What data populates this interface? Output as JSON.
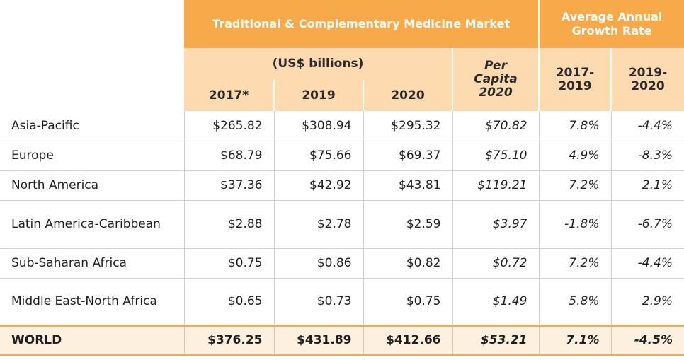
{
  "headers": {
    "market_group": "Traditional & Complementary Medicine Market",
    "growth_group": "Average Annual Growth Rate",
    "usd_billions": "(US$ billions)",
    "per_capita": "Per Capita 2020",
    "col_2017": "2017*",
    "col_2019": "2019",
    "col_2020": "2020",
    "growth_2017_2019": "2017-2019",
    "growth_2019_2020": "2019-2020"
  },
  "rows": [
    {
      "region": "Asia-Pacific",
      "v2017": "$265.82",
      "v2019": "$308.94",
      "v2020": "$295.32",
      "per_capita": "$70.82",
      "g1": "7.8%",
      "g2": "-4.4%"
    },
    {
      "region": "Europe",
      "v2017": "$68.79",
      "v2019": "$75.66",
      "v2020": "$69.37",
      "per_capita": "$75.10",
      "g1": "4.9%",
      "g2": "-8.3%"
    },
    {
      "region": "North America",
      "v2017": "$37.36",
      "v2019": "$42.92",
      "v2020": "$43.81",
      "per_capita": "$119.21",
      "g1": "7.2%",
      "g2": "2.1%"
    },
    {
      "region": "Latin America-Caribbean",
      "v2017": "$2.88",
      "v2019": "$2.78",
      "v2020": "$2.59",
      "per_capita": "$3.97",
      "g1": "-1.8%",
      "g2": "-6.7%"
    },
    {
      "region": "Sub-Saharan Africa",
      "v2017": "$0.75",
      "v2019": "$0.86",
      "v2020": "$0.82",
      "per_capita": "$0.72",
      "g1": "7.2%",
      "g2": "-4.4%"
    },
    {
      "region": "Middle East-North Africa",
      "v2017": "$0.65",
      "v2019": "$0.73",
      "v2020": "$0.75",
      "per_capita": "$1.49",
      "g1": "5.8%",
      "g2": "2.9%"
    }
  ],
  "world": {
    "region": "WORLD",
    "v2017": "$376.25",
    "v2019": "$431.89",
    "v2020": "$412.66",
    "per_capita": "$53.21",
    "g1": "7.1%",
    "g2": "-4.5%"
  },
  "colors": {
    "header_dark": "#f8a94a",
    "header_light": "#fddab0",
    "world_row": "#fef0de"
  }
}
